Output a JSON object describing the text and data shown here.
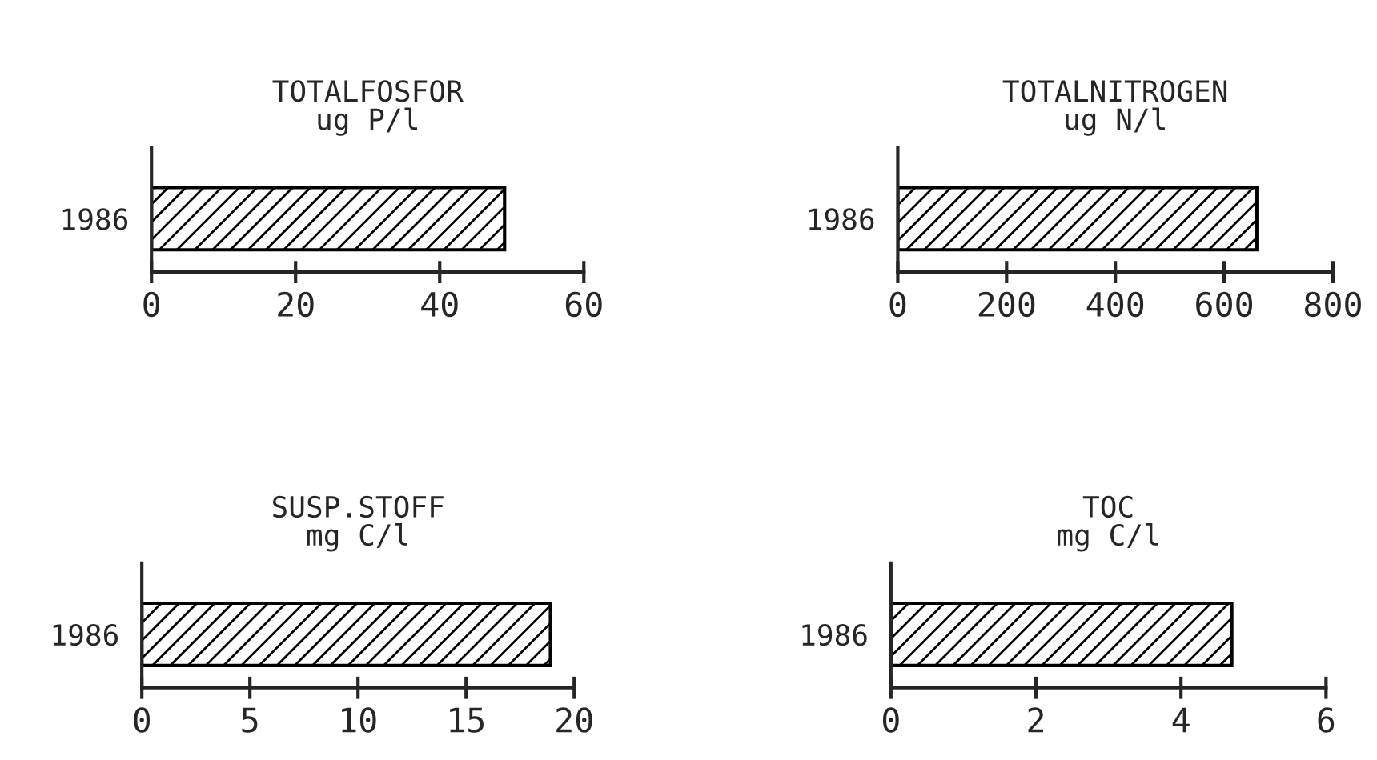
{
  "chart_data": [
    {
      "type": "bar",
      "orientation": "horizontal",
      "title": "TOTALFOSFOR",
      "subtitle": "ug P/l",
      "categories": [
        "1986"
      ],
      "values": [
        49
      ],
      "color": "#000000",
      "xlim": [
        0,
        60
      ],
      "xticks": [
        0,
        20,
        40,
        60
      ],
      "grid": false,
      "legend": false
    },
    {
      "type": "bar",
      "orientation": "horizontal",
      "title": "TOTALNITROGEN",
      "subtitle": "ug N/l",
      "categories": [
        "1986"
      ],
      "values": [
        660
      ],
      "color": "#000000",
      "xlim": [
        0,
        800
      ],
      "xticks": [
        0,
        200,
        400,
        600,
        800
      ],
      "grid": false,
      "legend": false
    },
    {
      "type": "bar",
      "orientation": "horizontal",
      "title": "SUSP.STOFF",
      "subtitle": "mg C/l",
      "categories": [
        "1986"
      ],
      "values": [
        18.9
      ],
      "color": "#000000",
      "xlim": [
        0,
        20
      ],
      "xticks": [
        0,
        5,
        10,
        15,
        20
      ],
      "grid": false,
      "legend": false
    },
    {
      "type": "bar",
      "orientation": "horizontal",
      "title": "TOC",
      "subtitle": "mg C/l",
      "categories": [
        "1986"
      ],
      "values": [
        4.7
      ],
      "color": "#000000",
      "xlim": [
        0,
        6
      ],
      "xticks": [
        0,
        2,
        4,
        6
      ],
      "grid": false,
      "legend": false
    }
  ]
}
